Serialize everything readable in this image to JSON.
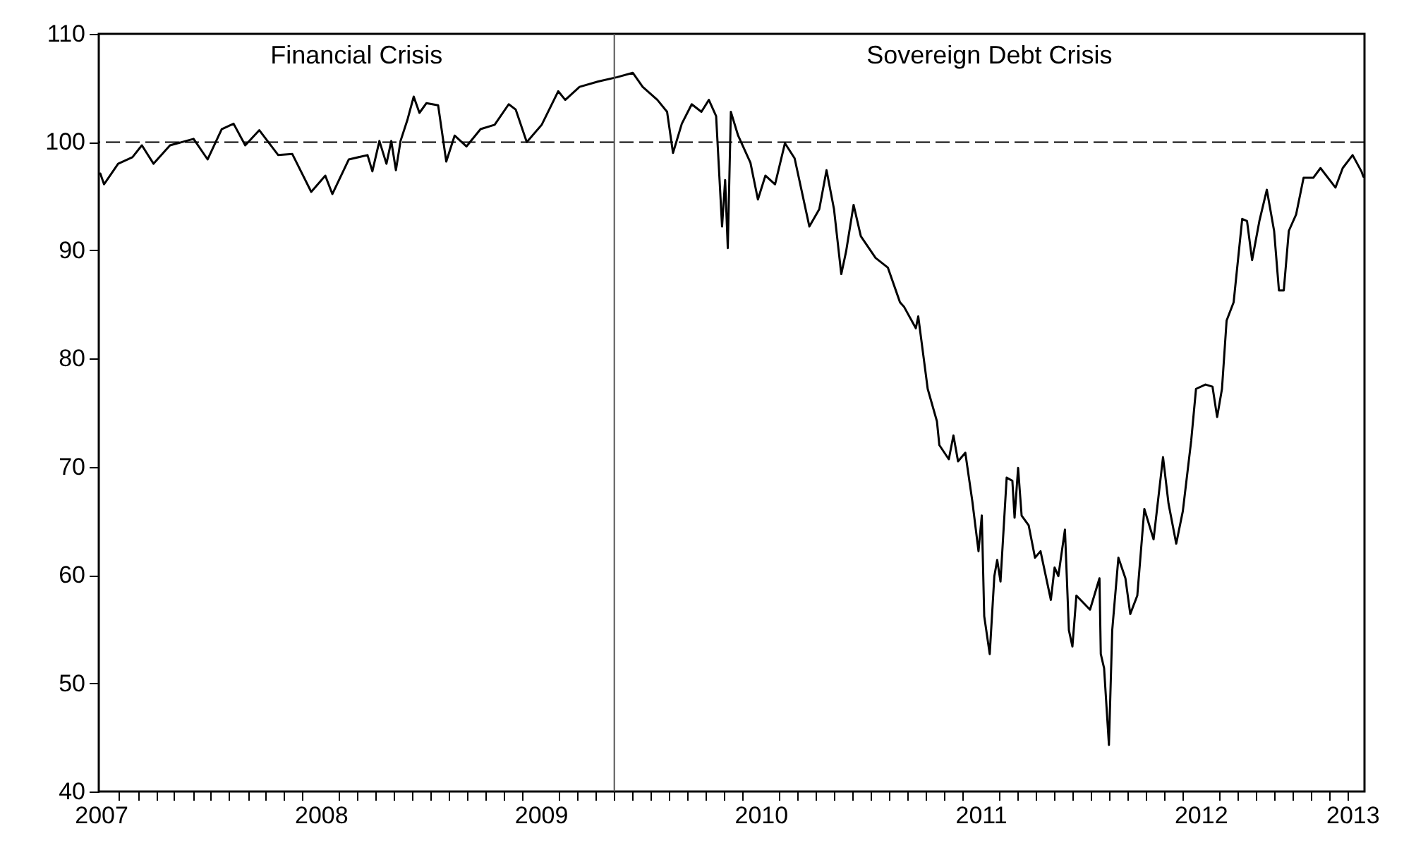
{
  "chart_data": {
    "type": "line",
    "color": "#000000",
    "line_style": "solid",
    "marker": "none",
    "x": [
      2007.497,
      2007.514,
      2007.578,
      2007.643,
      2007.686,
      2007.739,
      2007.814,
      2007.921,
      2007.985,
      2008.049,
      2008.103,
      2008.156,
      2008.22,
      2008.306,
      2008.37,
      2008.456,
      2008.52,
      2008.552,
      2008.627,
      2008.712,
      2008.734,
      2008.766,
      2008.798,
      2008.82,
      2008.841,
      2008.862,
      2008.894,
      2008.922,
      2008.948,
      2008.98,
      2009.033,
      2009.07,
      2009.108,
      2009.162,
      2009.226,
      2009.29,
      2009.354,
      2009.386,
      2009.436,
      2009.504,
      2009.579,
      2009.611,
      2009.676,
      2009.761,
      2009.847,
      2009.918,
      2009.963,
      2010.03,
      2010.074,
      2010.101,
      2010.141,
      2010.186,
      2010.23,
      2010.264,
      2010.297,
      2010.324,
      2010.338,
      2010.35,
      2010.364,
      2010.397,
      2010.453,
      2010.487,
      2010.521,
      2010.565,
      2010.61,
      2010.654,
      2010.721,
      2010.766,
      2010.799,
      2010.833,
      2010.866,
      2010.888,
      2010.922,
      2010.955,
      2011.022,
      2011.078,
      2011.133,
      2011.151,
      2011.205,
      2011.216,
      2011.259,
      2011.301,
      2011.312,
      2011.355,
      2011.376,
      2011.397,
      2011.43,
      2011.462,
      2011.49,
      2011.505,
      2011.516,
      2011.541,
      2011.562,
      2011.575,
      2011.59,
      2011.618,
      2011.644,
      2011.654,
      2011.67,
      2011.686,
      2011.718,
      2011.747,
      2011.772,
      2011.819,
      2011.836,
      2011.853,
      2011.883,
      2011.901,
      2011.917,
      2011.935,
      2011.997,
      2012.04,
      2012.046,
      2012.061,
      2012.083,
      2012.098,
      2012.126,
      2012.158,
      2012.18,
      2012.212,
      2012.244,
      2012.286,
      2012.329,
      2012.354,
      2012.389,
      2012.419,
      2012.457,
      2012.479,
      2012.522,
      2012.554,
      2012.575,
      2012.597,
      2012.618,
      2012.65,
      2012.689,
      2012.711,
      2012.734,
      2012.767,
      2012.801,
      2012.834,
      2012.856,
      2012.878,
      2012.901,
      2012.934,
      2012.968,
      2013.012,
      2013.045,
      2013.113,
      2013.146,
      2013.191,
      2013.231,
      2013.24
    ],
    "values": [
      97.1,
      96.1,
      98.0,
      98.6,
      99.7,
      98.0,
      99.7,
      100.3,
      98.4,
      101.2,
      101.7,
      99.7,
      101.1,
      98.8,
      98.9,
      95.4,
      96.9,
      95.2,
      98.4,
      98.8,
      97.3,
      100.1,
      98.0,
      100.1,
      97.4,
      100.1,
      102.1,
      104.2,
      102.7,
      103.6,
      103.4,
      98.2,
      100.6,
      99.6,
      101.2,
      101.6,
      103.5,
      103.0,
      100.0,
      101.6,
      104.7,
      103.9,
      105.1,
      105.6,
      106.0,
      106.4,
      105.1,
      103.9,
      102.8,
      99.0,
      101.7,
      103.5,
      102.8,
      103.9,
      102.4,
      92.2,
      96.5,
      90.2,
      102.8,
      100.6,
      98.1,
      94.7,
      96.9,
      96.1,
      99.9,
      98.5,
      92.2,
      93.8,
      97.4,
      93.8,
      87.8,
      89.9,
      94.2,
      91.3,
      89.3,
      88.4,
      85.2,
      84.8,
      82.8,
      83.9,
      77.2,
      74.2,
      72.0,
      70.7,
      72.9,
      70.5,
      71.3,
      66.8,
      62.2,
      65.5,
      56.2,
      52.7,
      59.9,
      61.4,
      59.4,
      69.0,
      68.7,
      65.3,
      69.9,
      65.5,
      64.6,
      61.6,
      62.2,
      57.7,
      60.7,
      59.9,
      64.2,
      54.9,
      53.4,
      58.1,
      56.8,
      59.7,
      52.7,
      51.4,
      44.3,
      54.9,
      61.6,
      59.7,
      56.4,
      58.1,
      66.1,
      63.3,
      70.9,
      66.6,
      62.9,
      65.9,
      72.4,
      77.2,
      77.6,
      77.4,
      74.6,
      77.2,
      83.5,
      85.2,
      92.9,
      92.7,
      89.1,
      92.7,
      95.6,
      91.8,
      86.3,
      86.3,
      91.8,
      93.3,
      96.7,
      96.7,
      97.6,
      95.8,
      97.6,
      98.8,
      97.3,
      96.8
    ],
    "xlim": [
      2007.49,
      2013.245
    ],
    "ylim": [
      40,
      110
    ],
    "yticks": [
      40,
      50,
      60,
      70,
      80,
      90,
      100,
      110
    ],
    "xticks": [
      {
        "value": 2007.5,
        "label": "2007"
      },
      {
        "value": 2008.5,
        "label": "2008"
      },
      {
        "value": 2009.5,
        "label": "2009"
      },
      {
        "value": 2010.5,
        "label": "2010"
      },
      {
        "value": 2011.5,
        "label": "2011"
      },
      {
        "value": 2012.5,
        "label": "2012"
      },
      {
        "value": 2013.19,
        "label": "2013"
      },
      {
        "value": 2007.583,
        "label": null
      },
      {
        "value": 2007.667,
        "label": null
      },
      {
        "value": 2007.75,
        "label": null
      },
      {
        "value": 2007.833,
        "label": null
      },
      {
        "value": 2007.917,
        "label": null
      },
      {
        "value": 2008,
        "label": null
      },
      {
        "value": 2008.083,
        "label": null
      },
      {
        "value": 2008.167,
        "label": null
      },
      {
        "value": 2008.25,
        "label": null
      },
      {
        "value": 2008.333,
        "label": null
      },
      {
        "value": 2008.417,
        "label": null
      },
      {
        "value": 2008.583,
        "label": null
      },
      {
        "value": 2008.667,
        "label": null
      },
      {
        "value": 2008.75,
        "label": null
      },
      {
        "value": 2008.833,
        "label": null
      },
      {
        "value": 2008.917,
        "label": null
      },
      {
        "value": 2009,
        "label": null
      },
      {
        "value": 2009.083,
        "label": null
      },
      {
        "value": 2009.167,
        "label": null
      },
      {
        "value": 2009.25,
        "label": null
      },
      {
        "value": 2009.333,
        "label": null
      },
      {
        "value": 2009.417,
        "label": null
      },
      {
        "value": 2009.583,
        "label": null
      },
      {
        "value": 2009.667,
        "label": null
      },
      {
        "value": 2009.75,
        "label": null
      },
      {
        "value": 2009.833,
        "label": null
      },
      {
        "value": 2009.917,
        "label": null
      },
      {
        "value": 2010,
        "label": null
      },
      {
        "value": 2010.083,
        "label": null
      },
      {
        "value": 2010.167,
        "label": null
      },
      {
        "value": 2010.25,
        "label": null
      },
      {
        "value": 2010.333,
        "label": null
      },
      {
        "value": 2010.417,
        "label": null
      },
      {
        "value": 2010.583,
        "label": null
      },
      {
        "value": 2010.667,
        "label": null
      },
      {
        "value": 2010.75,
        "label": null
      },
      {
        "value": 2010.833,
        "label": null
      },
      {
        "value": 2010.917,
        "label": null
      },
      {
        "value": 2011,
        "label": null
      },
      {
        "value": 2011.083,
        "label": null
      },
      {
        "value": 2011.167,
        "label": null
      },
      {
        "value": 2011.25,
        "label": null
      },
      {
        "value": 2011.333,
        "label": null
      },
      {
        "value": 2011.417,
        "label": null
      },
      {
        "value": 2011.583,
        "label": null
      },
      {
        "value": 2011.667,
        "label": null
      },
      {
        "value": 2011.75,
        "label": null
      },
      {
        "value": 2011.833,
        "label": null
      },
      {
        "value": 2011.917,
        "label": null
      },
      {
        "value": 2012,
        "label": null
      },
      {
        "value": 2012.083,
        "label": null
      },
      {
        "value": 2012.167,
        "label": null
      },
      {
        "value": 2012.25,
        "label": null
      },
      {
        "value": 2012.333,
        "label": null
      },
      {
        "value": 2012.417,
        "label": null
      },
      {
        "value": 2012.583,
        "label": null
      },
      {
        "value": 2012.667,
        "label": null
      },
      {
        "value": 2012.75,
        "label": null
      },
      {
        "value": 2012.833,
        "label": null
      },
      {
        "value": 2012.917,
        "label": null
      },
      {
        "value": 2013,
        "label": null
      },
      {
        "value": 2013.083,
        "label": null
      },
      {
        "value": 2013.167,
        "label": null
      }
    ],
    "ref_lines": [
      {
        "axis": "y",
        "value": 100,
        "color": "#000000",
        "line_style": "dashed"
      },
      {
        "axis": "x",
        "value": 2009.834,
        "color": "#555555",
        "line_style": "solid"
      }
    ],
    "annotations": [
      "Financial Crisis",
      "Sovereign Debt Crisis"
    ]
  }
}
